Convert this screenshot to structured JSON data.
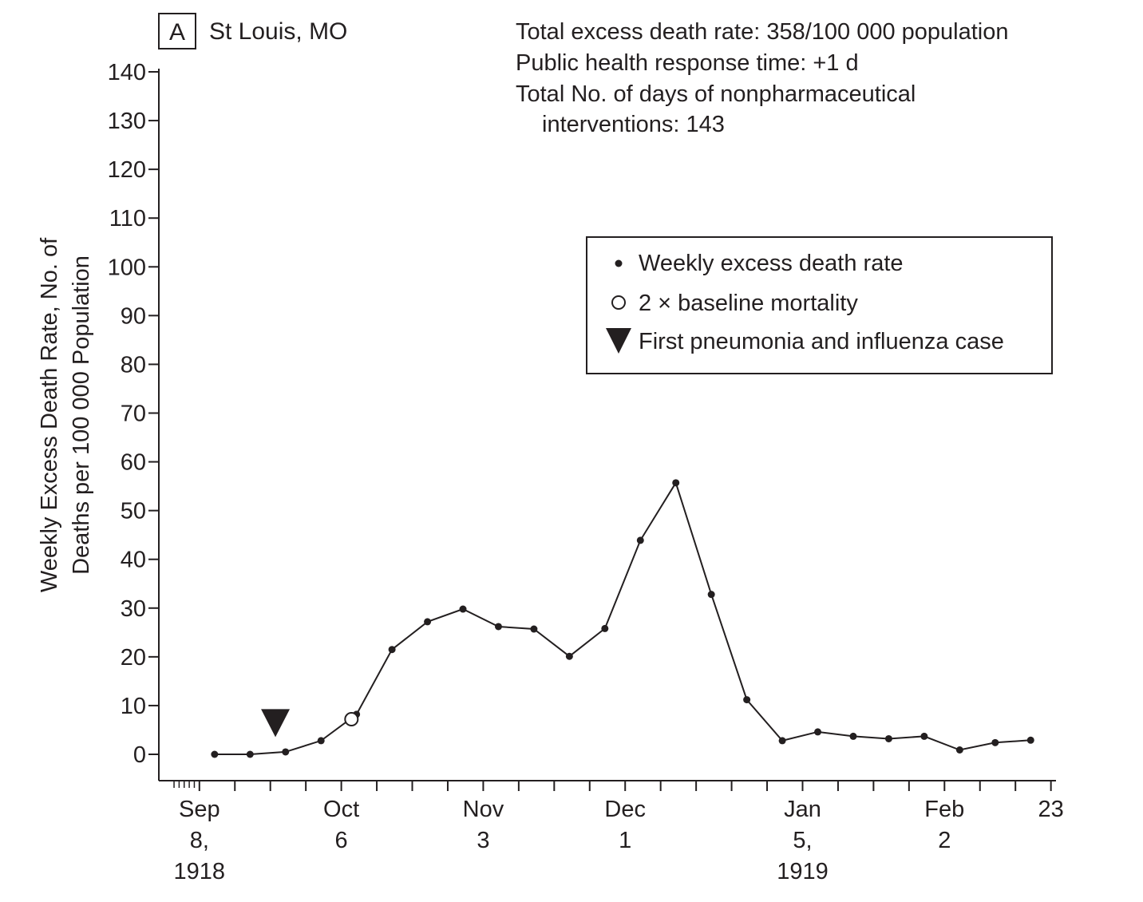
{
  "panel": {
    "letter": "A",
    "location": "St Louis, MO"
  },
  "stats": {
    "line1": "Total excess death rate: 358/100 000 population",
    "line2": "Public health response time: +1 d",
    "line3": "Total No. of days of nonpharmaceutical",
    "line4": "interventions: 143"
  },
  "legend": {
    "weekly": "Weekly excess death rate",
    "baseline": "2 × baseline mortality",
    "first_case": "First pneumonia and influenza case",
    "placement": "top-right"
  },
  "chart_data": {
    "type": "line",
    "title": "",
    "ylabel_line1": "Weekly Excess Death Rate, No. of",
    "ylabel_line2": "Deaths per 100 000 Population",
    "ylim": [
      0,
      140
    ],
    "xlim": [
      "1918-08-31",
      "1919-02-24"
    ],
    "yticks": [
      0,
      10,
      20,
      30,
      40,
      50,
      60,
      70,
      80,
      90,
      100,
      110,
      120,
      130,
      140
    ],
    "x_major_labels": [
      {
        "date": "1918-09-08",
        "lines": [
          "Sep",
          "8,",
          "1918"
        ]
      },
      {
        "date": "1918-10-06",
        "lines": [
          "Oct",
          "6"
        ]
      },
      {
        "date": "1918-11-03",
        "lines": [
          "Nov",
          "3"
        ]
      },
      {
        "date": "1918-12-01",
        "lines": [
          "Dec",
          "1"
        ]
      },
      {
        "date": "1919-01-05",
        "lines": [
          "Jan",
          "5,",
          "1919"
        ]
      },
      {
        "date": "1919-02-02",
        "lines": [
          "Feb",
          "2"
        ]
      },
      {
        "date": "1919-02-23",
        "lines": [
          "23"
        ]
      }
    ],
    "x_minor_ticks": [
      "1918-09-15",
      "1918-09-22",
      "1918-09-29",
      "1918-10-13",
      "1918-10-20",
      "1918-10-27",
      "1918-11-10",
      "1918-11-17",
      "1918-11-24",
      "1918-12-08",
      "1918-12-15",
      "1918-12-22",
      "1918-12-29",
      "1919-01-12",
      "1919-01-19",
      "1919-01-26",
      "1919-02-09",
      "1919-02-16"
    ],
    "x_daily_ticks": [
      "1918-09-03",
      "1918-09-04",
      "1918-09-05",
      "1918-09-06",
      "1918-09-07"
    ],
    "series": [
      {
        "values": [
          {
            "x": "1918-09-11",
            "y": 0
          },
          {
            "x": "1918-09-18",
            "y": 0
          },
          {
            "x": "1918-09-25",
            "y": 0.5
          },
          {
            "x": "1918-10-02",
            "y": 2.8
          },
          {
            "x": "1918-10-09",
            "y": 8.2
          },
          {
            "x": "1918-10-16",
            "y": 21.5
          },
          {
            "x": "1918-10-23",
            "y": 27.2
          },
          {
            "x": "1918-10-30",
            "y": 29.8
          },
          {
            "x": "1918-11-06",
            "y": 26.2
          },
          {
            "x": "1918-11-13",
            "y": 25.7
          },
          {
            "x": "1918-11-20",
            "y": 20.1
          },
          {
            "x": "1918-11-27",
            "y": 25.8
          },
          {
            "x": "1918-12-04",
            "y": 43.9
          },
          {
            "x": "1918-12-11",
            "y": 55.7
          },
          {
            "x": "1918-12-18",
            "y": 32.8
          },
          {
            "x": "1918-12-25",
            "y": 11.2
          },
          {
            "x": "1919-01-01",
            "y": 2.8
          },
          {
            "x": "1919-01-08",
            "y": 4.6
          },
          {
            "x": "1919-01-15",
            "y": 3.7
          },
          {
            "x": "1919-01-22",
            "y": 3.2
          },
          {
            "x": "1919-01-29",
            "y": 3.7
          },
          {
            "x": "1919-02-05",
            "y": 0.9
          },
          {
            "x": "1919-02-12",
            "y": 2.4
          },
          {
            "x": "1919-02-19",
            "y": 2.9
          }
        ]
      }
    ],
    "baseline_marker": {
      "x": "1918-10-08",
      "y": 7.2
    },
    "first_case_marker": {
      "x": "1918-09-23",
      "y": 6
    }
  }
}
